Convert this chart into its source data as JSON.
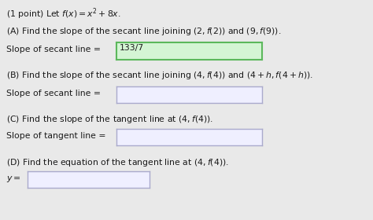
{
  "bg_color": "#e9e9e9",
  "title": "(1 point) Let $f(x) = x^2 + 8x$.",
  "partA_q": "(A) Find the slope of the secant line joining $(2, f(2))$ and $(9, f(9))$.",
  "partA_label": "Slope of secant line =",
  "partA_answer": "133/7",
  "partA_box_fc": "#d4f5d4",
  "partA_box_ec": "#5cb85c",
  "partB_q": "(B) Find the slope of the secant line joining $(4, f(4))$ and $(4+h, f(4+h))$.",
  "partB_label": "Slope of secant line =",
  "partC_q": "(C) Find the slope of the tangent line at $(4, f(4))$.",
  "partC_label": "Slope of tangent line =",
  "partD_q": "(D) Find the equation of the tangent line at $(4, f(4))$.",
  "partD_label": "$y =$",
  "input_fc": "#efefff",
  "input_ec": "#aaaacc",
  "text_color": "#1a1a1a",
  "font_size": 7.8
}
